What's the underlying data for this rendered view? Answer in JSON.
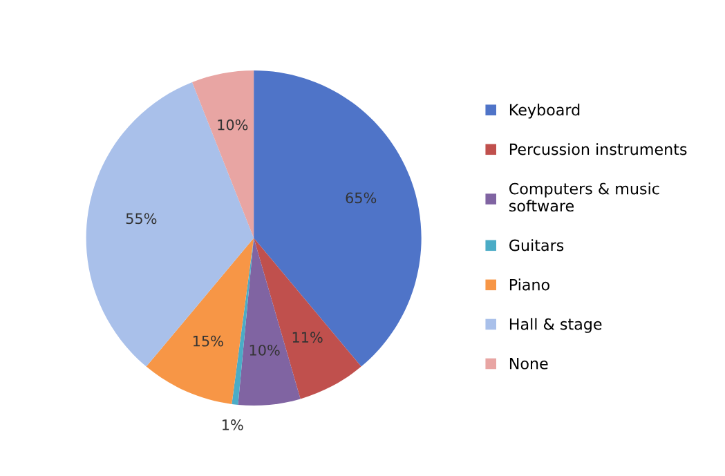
{
  "chart_data": {
    "type": "pie",
    "categories": [
      "Keyboard",
      "Percussion instruments",
      "Computers & music software",
      "Guitars",
      "Piano",
      "Hall & stage",
      "None"
    ],
    "values": [
      65,
      11,
      10,
      1,
      15,
      55,
      10
    ],
    "colors": [
      "#4f74c8",
      "#c0504d",
      "#8064a2",
      "#4bacc6",
      "#f79646",
      "#a9c0ea",
      "#e8a5a3"
    ],
    "value_labels": [
      "65%",
      "11%",
      "10%",
      "1%",
      "15%",
      "55%",
      "10%"
    ],
    "legend": "right"
  }
}
